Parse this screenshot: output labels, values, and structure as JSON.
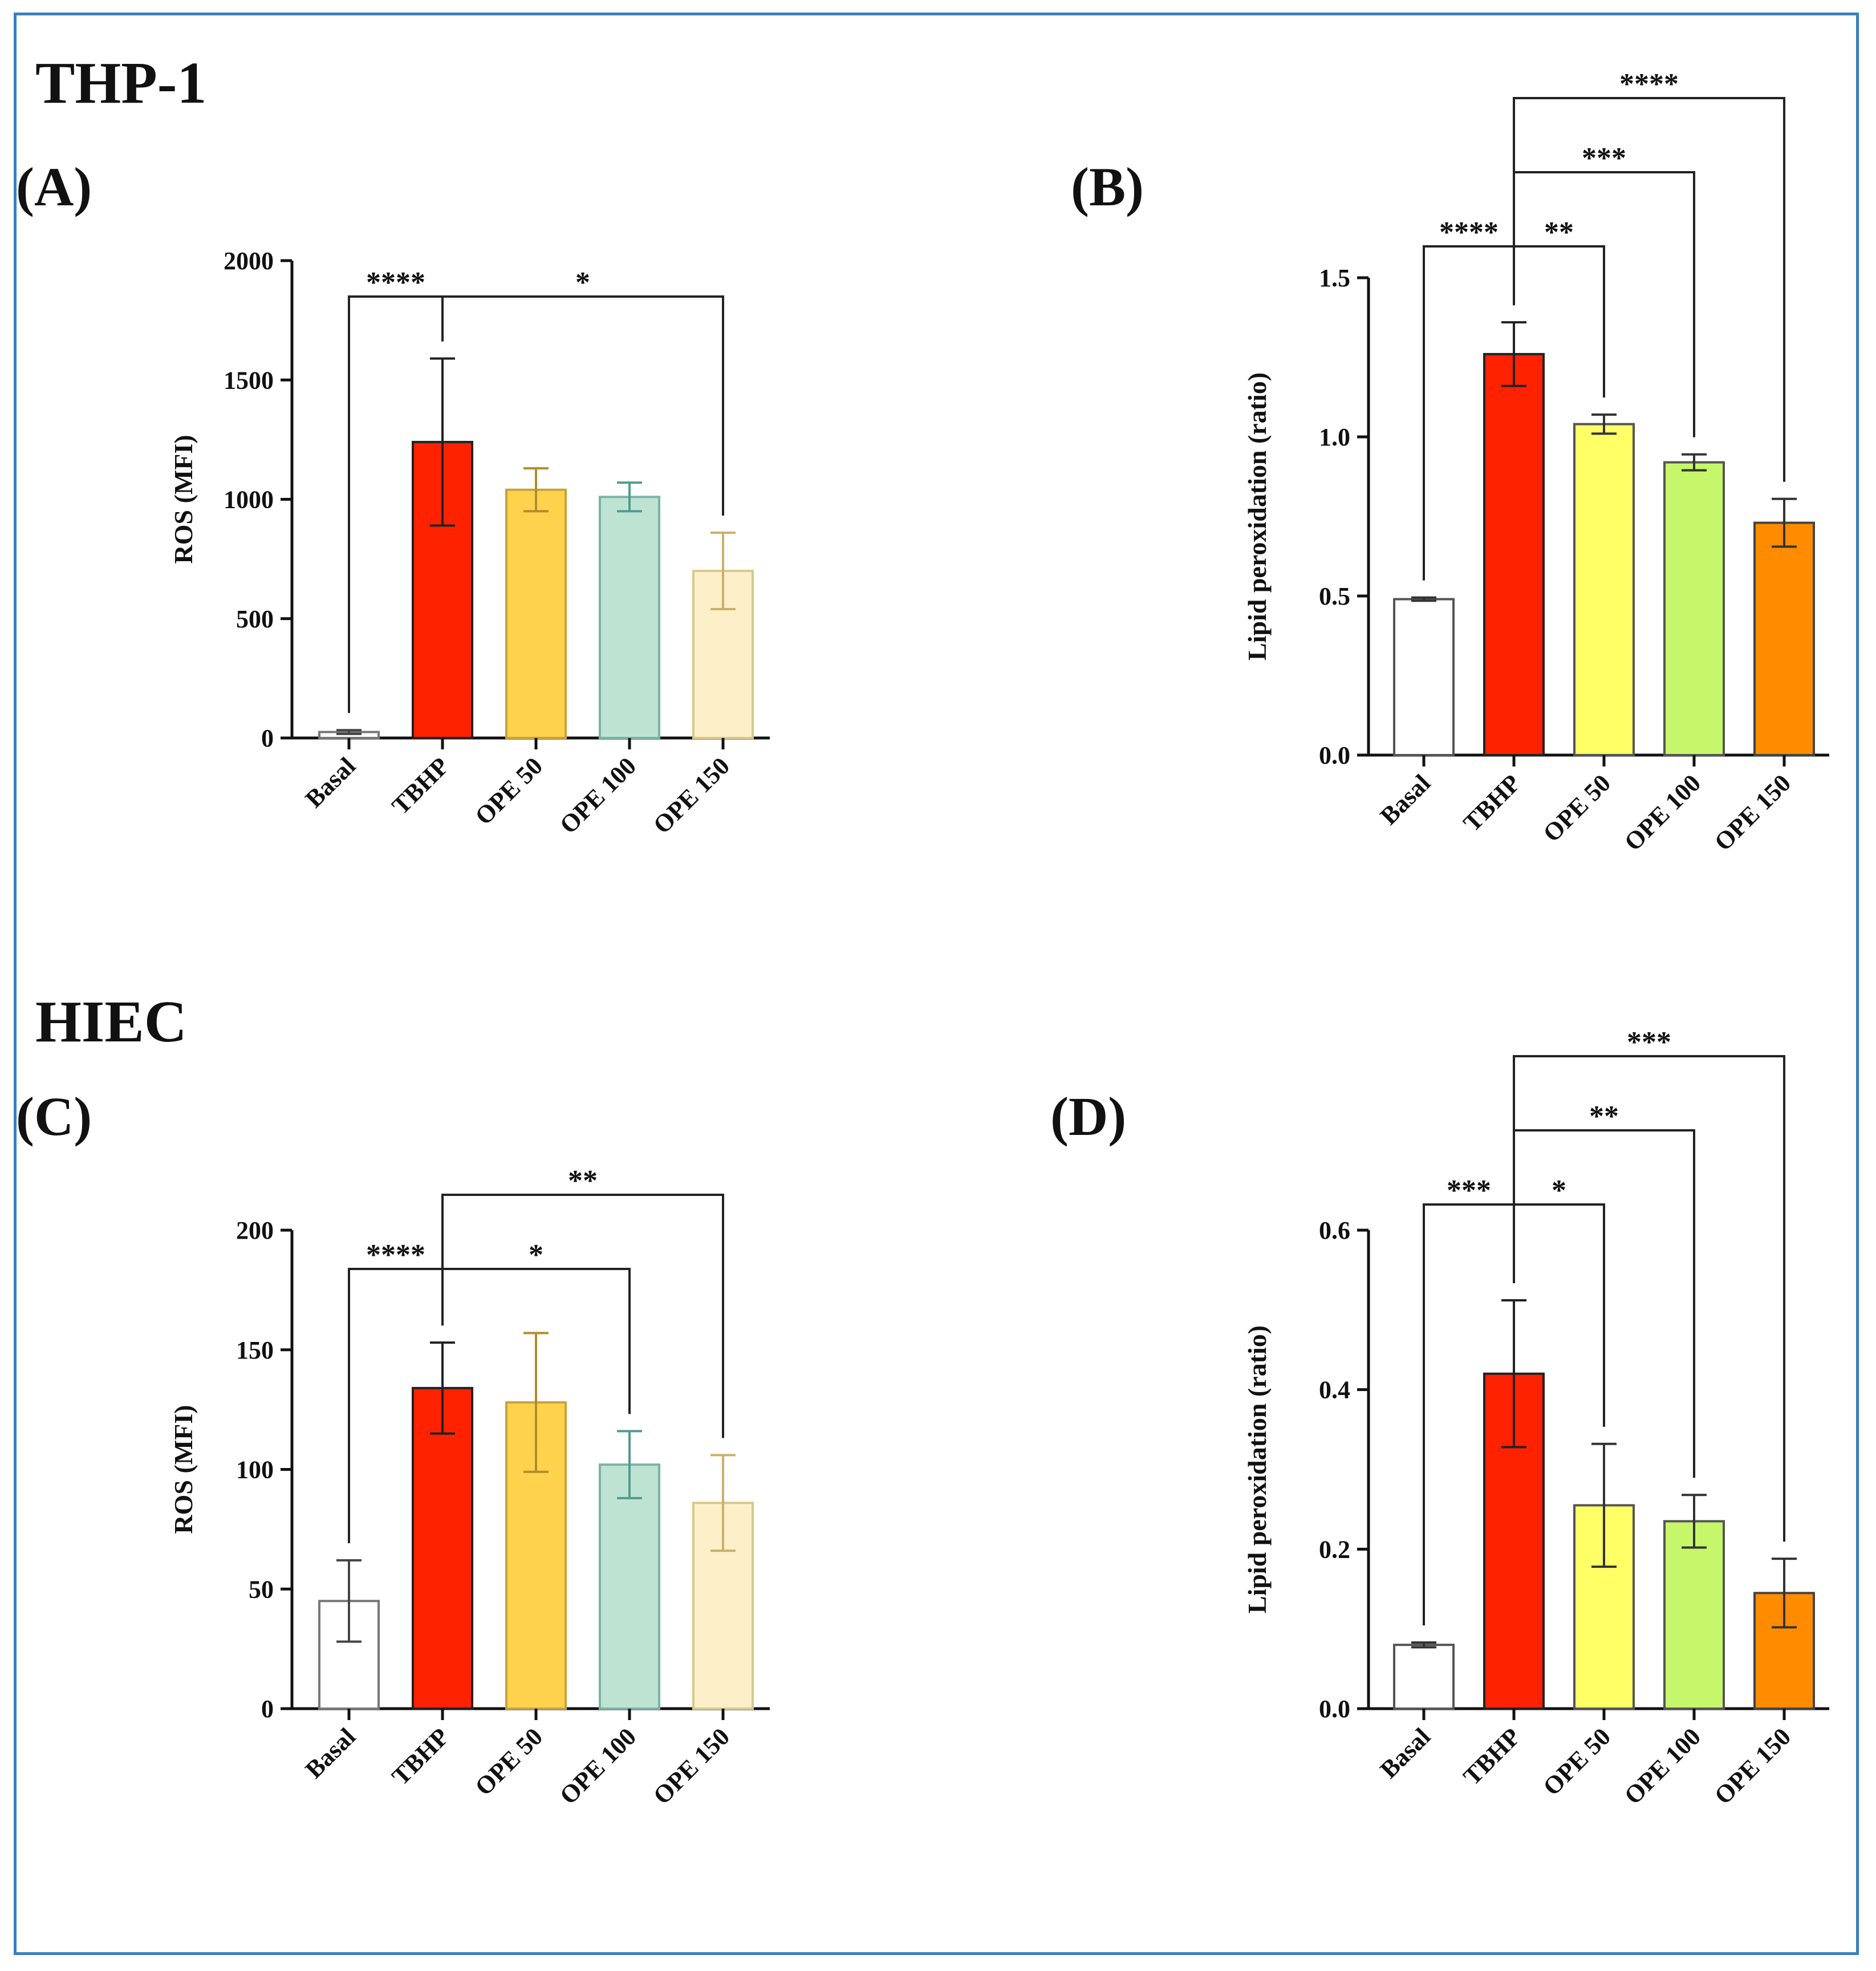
{
  "sections": {
    "top": "THP-1",
    "bottom": "HIEC"
  },
  "chart_data": [
    {
      "id": "A",
      "panel_label": "(A)",
      "type": "bar",
      "cell_line": "THP-1",
      "categories": [
        "Basal",
        "TBHP",
        "OPE 50",
        "OPE 100",
        "OPE 150"
      ],
      "values": [
        25,
        1240,
        1040,
        1010,
        700
      ],
      "errors": [
        8,
        350,
        90,
        60,
        160
      ],
      "colors": [
        "#ffffff",
        "#ff2200",
        "#ffd24d",
        "#bfe3d3",
        "#fdefc8"
      ],
      "edge_colors": [
        "#777777",
        "#222222",
        "#c9a23a",
        "#79b3a6",
        "#d8c98a"
      ],
      "error_colors": [
        "#444444",
        "#222222",
        "#b08d2a",
        "#4f9b90",
        "#c9b06a"
      ],
      "ylabel": "ROS (MFI)",
      "xlabel": "",
      "ylim": [
        0,
        2000
      ],
      "yticks": [
        0,
        500,
        1000,
        1500,
        2000
      ],
      "ytick_labels": [
        "0",
        "500",
        "1000",
        "1500",
        "2000"
      ],
      "comparisons": [
        {
          "from": 0,
          "to": 1,
          "label": "****",
          "level": 0
        },
        {
          "from": 1,
          "to": 4,
          "label": "*",
          "level": 0
        }
      ]
    },
    {
      "id": "B",
      "panel_label": "(B)",
      "type": "bar",
      "cell_line": "THP-1",
      "categories": [
        "Basal",
        "TBHP",
        "OPE 50",
        "OPE 100",
        "OPE 150"
      ],
      "values": [
        0.49,
        1.26,
        1.04,
        0.92,
        0.73
      ],
      "errors": [
        0.005,
        0.1,
        0.03,
        0.025,
        0.075
      ],
      "colors": [
        "#ffffff",
        "#ff2200",
        "#ffff66",
        "#c6f76a",
        "#ff8c00"
      ],
      "edge_colors": [
        "#555555",
        "#222222",
        "#555555",
        "#555555",
        "#444444"
      ],
      "error_colors": [
        "#333333",
        "#222222",
        "#333333",
        "#333333",
        "#333333"
      ],
      "ylabel": "Lipid peroxidation (ratio)",
      "xlabel": "",
      "ylim": [
        0,
        1.5
      ],
      "yticks": [
        0,
        0.5,
        1.0,
        1.5
      ],
      "ytick_labels": [
        "0.0",
        "0.5",
        "1.0",
        "1.5"
      ],
      "comparisons": [
        {
          "from": 0,
          "to": 1,
          "label": "****",
          "level": 0
        },
        {
          "from": 1,
          "to": 2,
          "label": "**",
          "level": 0
        },
        {
          "from": 1,
          "to": 3,
          "label": "***",
          "level": 1
        },
        {
          "from": 1,
          "to": 4,
          "label": "****",
          "level": 2
        }
      ]
    },
    {
      "id": "C",
      "panel_label": "(C)",
      "type": "bar",
      "cell_line": "HIEC",
      "categories": [
        "Basal",
        "TBHP",
        "OPE 50",
        "OPE 100",
        "OPE 150"
      ],
      "values": [
        45,
        134,
        128,
        102,
        86
      ],
      "errors": [
        17,
        19,
        29,
        14,
        20
      ],
      "colors": [
        "#ffffff",
        "#ff2200",
        "#ffd24d",
        "#bfe3d3",
        "#fdefc8"
      ],
      "edge_colors": [
        "#777777",
        "#222222",
        "#c9a23a",
        "#79b3a6",
        "#d8c98a"
      ],
      "error_colors": [
        "#444444",
        "#222222",
        "#b08d2a",
        "#4f9b90",
        "#c9b06a"
      ],
      "ylabel": "ROS (MFI)",
      "xlabel": "",
      "ylim": [
        0,
        200
      ],
      "yticks": [
        0,
        50,
        100,
        150,
        200
      ],
      "ytick_labels": [
        "0",
        "50",
        "100",
        "150",
        "200"
      ],
      "comparisons": [
        {
          "from": 0,
          "to": 1,
          "label": "****",
          "level": 0
        },
        {
          "from": 1,
          "to": 3,
          "label": "*",
          "level": 0
        },
        {
          "from": 1,
          "to": 4,
          "label": "**",
          "level": 1
        }
      ]
    },
    {
      "id": "D",
      "panel_label": "(D)",
      "type": "bar",
      "cell_line": "HIEC",
      "categories": [
        "Basal",
        "TBHP",
        "OPE 50",
        "OPE 100",
        "OPE 150"
      ],
      "values": [
        0.08,
        0.42,
        0.255,
        0.235,
        0.145
      ],
      "errors": [
        0.003,
        0.092,
        0.077,
        0.033,
        0.043
      ],
      "colors": [
        "#ffffff",
        "#ff2200",
        "#ffff66",
        "#c6f76a",
        "#ff8c00"
      ],
      "edge_colors": [
        "#555555",
        "#222222",
        "#555555",
        "#555555",
        "#444444"
      ],
      "error_colors": [
        "#333333",
        "#222222",
        "#333333",
        "#333333",
        "#333333"
      ],
      "ylabel": "Lipid peroxidation (ratio)",
      "xlabel": "",
      "ylim": [
        0,
        0.6
      ],
      "yticks": [
        0,
        0.2,
        0.4,
        0.6
      ],
      "ytick_labels": [
        "0.0",
        "0.2",
        "0.4",
        "0.6"
      ],
      "comparisons": [
        {
          "from": 0,
          "to": 1,
          "label": "***",
          "level": 0
        },
        {
          "from": 1,
          "to": 2,
          "label": "*",
          "level": 0
        },
        {
          "from": 1,
          "to": 3,
          "label": "**",
          "level": 1
        },
        {
          "from": 1,
          "to": 4,
          "label": "***",
          "level": 2
        }
      ]
    }
  ]
}
